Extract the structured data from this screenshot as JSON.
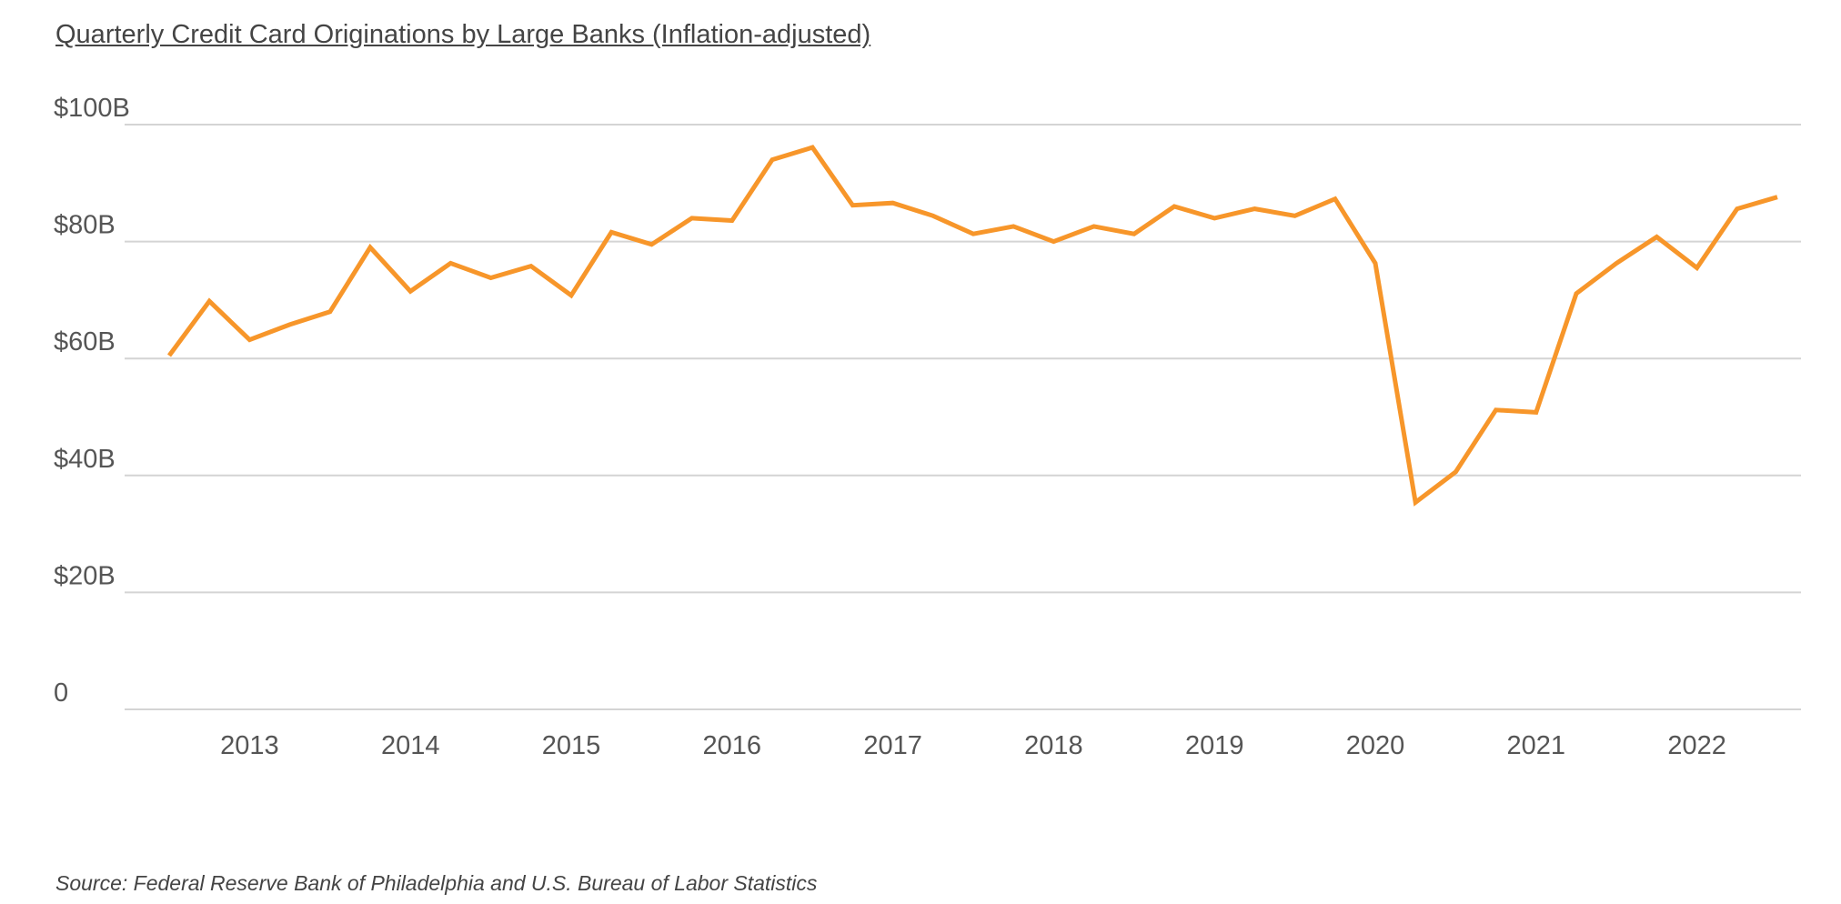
{
  "chart_data": {
    "type": "line",
    "title": "Quarterly Credit Card Originations by Large Banks (Inflation-adjusted)",
    "source": "Source: Federal Reserve Bank of Philadelphia and U.S. Bureau of Labor Statistics",
    "xlabel": "",
    "ylabel": "",
    "ylim": [
      0,
      100
    ],
    "yticks": [
      0,
      20,
      40,
      60,
      80,
      100
    ],
    "ytick_labels": [
      "0",
      "$20B",
      "$40B",
      "$60B",
      "$80B",
      "$100B"
    ],
    "xticks": [
      "2013",
      "2014",
      "2015",
      "2016",
      "2017",
      "2018",
      "2019",
      "2020",
      "2021",
      "2022"
    ],
    "grid": true,
    "legend": "none",
    "line_color": "#F7962A",
    "series": [
      {
        "x": [
          "2012-Q3",
          "2012-Q4",
          "2013-Q1",
          "2013-Q2",
          "2013-Q3",
          "2013-Q4",
          "2014-Q1",
          "2014-Q2",
          "2014-Q3",
          "2014-Q4",
          "2015-Q1",
          "2015-Q2",
          "2015-Q3",
          "2015-Q4",
          "2016-Q1",
          "2016-Q2",
          "2016-Q3",
          "2016-Q4",
          "2017-Q1",
          "2017-Q2",
          "2017-Q3",
          "2017-Q4",
          "2018-Q1",
          "2018-Q2",
          "2018-Q3",
          "2018-Q4",
          "2019-Q1",
          "2019-Q2",
          "2019-Q3",
          "2019-Q4",
          "2020-Q1",
          "2020-Q2",
          "2020-Q3",
          "2020-Q4",
          "2021-Q1",
          "2021-Q2",
          "2021-Q3",
          "2021-Q4",
          "2022-Q1",
          "2022-Q2",
          "2022-Q3"
        ],
        "values": [
          60.5,
          69.8,
          63.2,
          65.8,
          68.0,
          79.0,
          71.5,
          76.3,
          73.8,
          75.8,
          70.8,
          81.6,
          79.5,
          84.0,
          83.6,
          94.0,
          96.1,
          86.2,
          86.6,
          84.4,
          81.3,
          82.6,
          80.0,
          82.6,
          81.3,
          86.0,
          84.0,
          85.6,
          84.4,
          87.3,
          76.3,
          35.4,
          40.6,
          51.2,
          50.8,
          71.1,
          76.3,
          80.8,
          75.5,
          85.6,
          87.6
        ]
      }
    ]
  }
}
